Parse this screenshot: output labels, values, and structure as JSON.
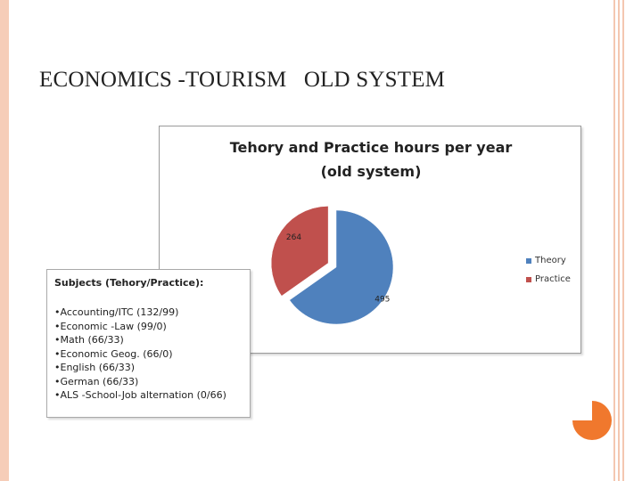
{
  "slide": {
    "title": "ECONOMICS -TOURISM   OLD SYSTEM"
  },
  "chart_data": {
    "type": "pie",
    "title_line1": "Tehory and Practice hours per year",
    "title_line2": "(old system)",
    "slices": [
      {
        "label": "Theory",
        "value": 495,
        "color": "#4f81bd",
        "exploded": false
      },
      {
        "label": "Practice",
        "value": 264,
        "color": "#c0504d",
        "exploded": true
      }
    ],
    "data_labels": [
      "495",
      "264"
    ],
    "legend": [
      "Theory",
      "Practice"
    ],
    "legend_position": "right"
  },
  "subjects": {
    "heading": "Subjects (Tehory/Practice):",
    "items": [
      "•Accounting/ITC (132/99)",
      "•Economic -Law (99/0)",
      "•Math (66/33)",
      "•Economic Geog. (66/0)",
      "•English (66/33)",
      "•German (66/33)",
      "•ALS -School-Job alternation (0/66)"
    ]
  },
  "colors": {
    "border": "#f6cdb8",
    "accent_orange": "#f0782d"
  }
}
